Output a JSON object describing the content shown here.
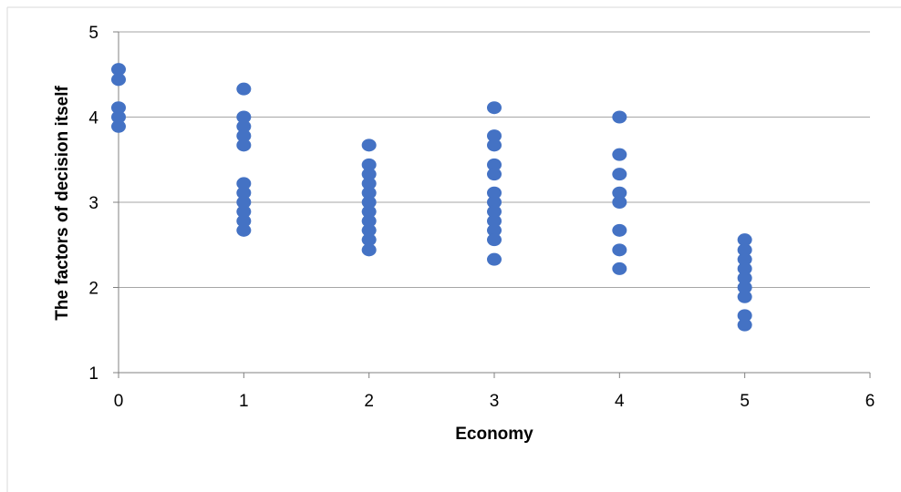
{
  "chart_data": {
    "type": "scatter",
    "title": "",
    "xlabel": "Economy",
    "ylabel": "The factors of decision itself",
    "xlim": [
      0,
      6
    ],
    "ylim": [
      1,
      5
    ],
    "x_ticks": [
      0,
      1,
      2,
      3,
      4,
      5,
      6
    ],
    "y_ticks": [
      1,
      2,
      3,
      4,
      5
    ],
    "grid": "horizontal",
    "legend": "none",
    "marker_color": "#4472C4",
    "series": [
      {
        "points": [
          [
            0,
            4.56
          ],
          [
            0,
            4.44
          ],
          [
            0,
            4.11
          ],
          [
            0,
            4.0
          ],
          [
            0,
            3.89
          ],
          [
            1,
            4.33
          ],
          [
            1,
            4.0
          ],
          [
            1,
            3.89
          ],
          [
            1,
            3.78
          ],
          [
            1,
            3.67
          ],
          [
            1,
            3.22
          ],
          [
            1,
            3.11
          ],
          [
            1,
            3.0
          ],
          [
            1,
            2.89
          ],
          [
            1,
            2.78
          ],
          [
            1,
            2.67
          ],
          [
            2,
            3.67
          ],
          [
            2,
            3.44
          ],
          [
            2,
            3.33
          ],
          [
            2,
            3.22
          ],
          [
            2,
            3.11
          ],
          [
            2,
            3.0
          ],
          [
            2,
            2.89
          ],
          [
            2,
            2.78
          ],
          [
            2,
            2.67
          ],
          [
            2,
            2.56
          ],
          [
            2,
            2.44
          ],
          [
            3,
            4.11
          ],
          [
            3,
            3.78
          ],
          [
            3,
            3.67
          ],
          [
            3,
            3.44
          ],
          [
            3,
            3.33
          ],
          [
            3,
            3.11
          ],
          [
            3,
            3.0
          ],
          [
            3,
            2.89
          ],
          [
            3,
            2.78
          ],
          [
            3,
            2.67
          ],
          [
            3,
            2.56
          ],
          [
            3,
            2.33
          ],
          [
            4,
            4.0
          ],
          [
            4,
            3.56
          ],
          [
            4,
            3.33
          ],
          [
            4,
            3.11
          ],
          [
            4,
            3.0
          ],
          [
            4,
            2.67
          ],
          [
            4,
            2.44
          ],
          [
            4,
            2.22
          ],
          [
            5,
            2.56
          ],
          [
            5,
            2.44
          ],
          [
            5,
            2.33
          ],
          [
            5,
            2.22
          ],
          [
            5,
            2.11
          ],
          [
            5,
            2.0
          ],
          [
            5,
            1.89
          ],
          [
            5,
            1.67
          ],
          [
            5,
            1.56
          ]
        ]
      }
    ]
  }
}
